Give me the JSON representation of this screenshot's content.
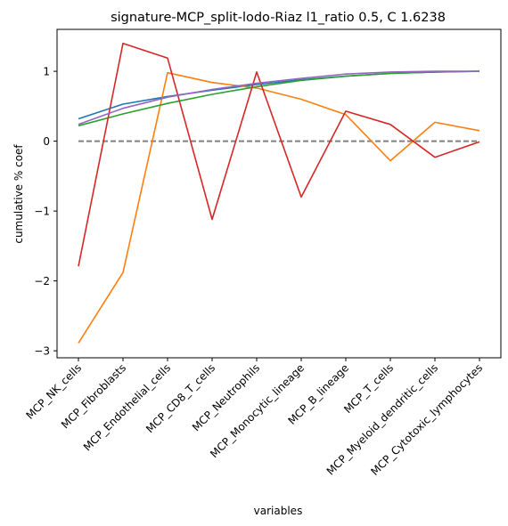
{
  "chart_data": {
    "type": "line",
    "title": "signature-MCP_split-lodo-Riaz l1_ratio 0.5, C 1.6238",
    "xlabel": "variables",
    "ylabel": "cumulative % coef",
    "categories": [
      "MCP_NK_cells",
      "MCP_Fibroblasts",
      "MCP_Endothelial_cells",
      "MCP_CD8_T_cells",
      "MCP_Neutrophils",
      "MCP_Monocytic_lineage",
      "MCP_B_lineage",
      "MCP_T_cells",
      "MCP_Myeloid_dendritic_cells",
      "MCP_Cytotoxic_lymphocytes"
    ],
    "ylim": [
      -3.1,
      1.6
    ],
    "yticks": [
      -3,
      -2,
      -1,
      0,
      1
    ],
    "yticklabels": [
      "−3",
      "−2",
      "−1",
      "0",
      "1"
    ],
    "grid": false,
    "reference_line": {
      "y": 0,
      "style": "dashed",
      "color": "#808080"
    },
    "series": [
      {
        "color": "#1f77b4",
        "values": [
          0.32,
          0.53,
          0.64,
          0.73,
          0.81,
          0.88,
          0.93,
          0.97,
          0.99,
          1.0
        ]
      },
      {
        "color": "#ff7f0e",
        "values": [
          -2.89,
          -1.88,
          0.98,
          0.84,
          0.76,
          0.6,
          0.38,
          -0.28,
          0.27,
          0.15
        ]
      },
      {
        "color": "#2ca02c",
        "values": [
          0.22,
          0.39,
          0.54,
          0.67,
          0.78,
          0.87,
          0.93,
          0.97,
          0.99,
          1.0
        ]
      },
      {
        "color": "#d62728",
        "values": [
          -1.79,
          1.4,
          1.19,
          -1.12,
          0.99,
          -0.8,
          0.43,
          0.24,
          -0.23,
          -0.01
        ]
      },
      {
        "color": "#9467bd",
        "values": [
          0.24,
          0.47,
          0.63,
          0.74,
          0.83,
          0.9,
          0.96,
          0.99,
          1.0,
          1.0
        ]
      }
    ]
  }
}
